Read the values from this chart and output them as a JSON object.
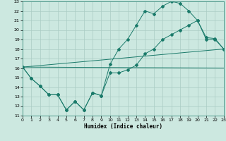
{
  "title": "",
  "xlabel": "Humidex (Indice chaleur)",
  "bg_color": "#cce8e0",
  "grid_color": "#aaccC4",
  "line_color": "#1a7a6a",
  "xmin": 0,
  "xmax": 23,
  "ymin": 11,
  "ymax": 23,
  "x_ticks": [
    0,
    1,
    2,
    3,
    4,
    5,
    6,
    7,
    8,
    9,
    10,
    11,
    12,
    13,
    14,
    15,
    16,
    17,
    18,
    19,
    20,
    21,
    22,
    23
  ],
  "y_ticks": [
    11,
    12,
    13,
    14,
    15,
    16,
    17,
    18,
    19,
    20,
    21,
    22,
    23
  ],
  "line1_x": [
    0,
    1,
    2,
    3,
    4,
    5,
    6,
    7,
    8,
    9,
    10,
    11,
    12,
    13,
    14,
    15,
    16,
    17,
    18,
    19,
    20,
    21,
    22,
    23
  ],
  "line1_y": [
    16.1,
    14.9,
    14.1,
    13.2,
    13.2,
    11.6,
    12.5,
    11.6,
    13.4,
    13.1,
    15.5,
    15.5,
    15.8,
    16.3,
    17.5,
    18.0,
    19.0,
    19.5,
    20.0,
    20.5,
    21.0,
    19.0,
    19.0,
    18.0
  ],
  "line2_x": [
    0,
    1,
    2,
    3,
    4,
    5,
    6,
    7,
    8,
    9,
    10,
    11,
    12,
    13,
    14,
    15,
    16,
    17,
    18,
    19,
    20,
    21,
    22,
    23
  ],
  "line2_y": [
    16.1,
    14.9,
    14.1,
    13.2,
    13.2,
    11.6,
    12.5,
    11.6,
    13.4,
    13.1,
    16.4,
    18.0,
    19.0,
    20.5,
    22.0,
    21.7,
    22.5,
    23.0,
    22.8,
    22.0,
    21.0,
    19.2,
    19.1,
    18.0
  ],
  "line3_x": [
    0,
    23
  ],
  "line3_y": [
    16.1,
    16.0
  ],
  "line4_x": [
    0,
    23
  ],
  "line4_y": [
    16.1,
    18.0
  ]
}
